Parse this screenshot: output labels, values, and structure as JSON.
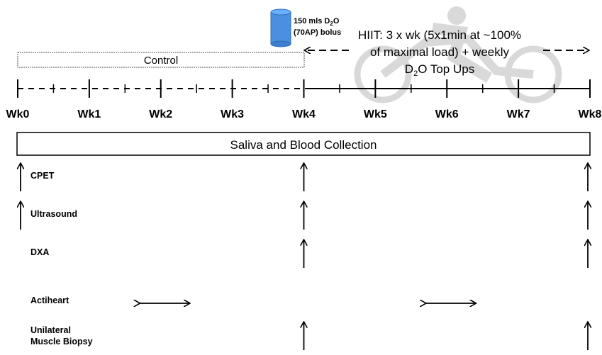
{
  "bolus": {
    "line1_prefix": "150 mls D",
    "line1_sub": "2",
    "line1_suffix": "O",
    "line2": "(70AP) bolus"
  },
  "hiit": {
    "line1": "HIIT: 3 x wk (5x1min at ~100%",
    "line2": "of maximal load) + weekly",
    "line3_prefix": "D",
    "line3_sub": "2",
    "line3_suffix": "O Top Ups"
  },
  "control_label": "Control",
  "weeks": [
    "Wk0",
    "Wk1",
    "Wk2",
    "Wk3",
    "Wk4",
    "Wk5",
    "Wk6",
    "Wk7",
    "Wk8"
  ],
  "collection_label": "Saliva and Blood Collection",
  "measures": [
    {
      "label": "CPET",
      "weeks": [
        0,
        4,
        8
      ]
    },
    {
      "label": "Ultrasound",
      "weeks": [
        0,
        4,
        8
      ]
    },
    {
      "label": "DXA",
      "weeks": [
        4,
        8
      ]
    },
    {
      "label": "Actiheart",
      "ranges": [
        [
          1.7,
          2.4
        ],
        [
          5.7,
          6.4
        ]
      ]
    },
    {
      "label": "Unilateral\nMuscle Biopsy",
      "weeks": [
        4,
        8
      ]
    }
  ],
  "colors": {
    "line": "#000000",
    "cup_fill": "#4a8fe0",
    "cup_rim": "#6ab0ff",
    "cyclist": "#d9d9d9",
    "control_border": "#555555"
  }
}
